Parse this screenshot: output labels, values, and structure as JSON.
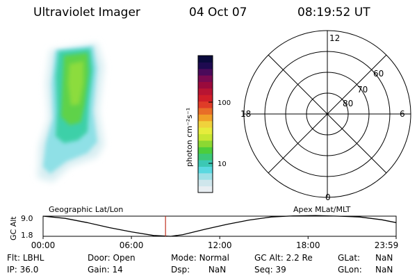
{
  "header": {
    "instrument": "Ultraviolet Imager",
    "date": "04 Oct 07",
    "time": "08:19:52 UT"
  },
  "colorbar": {
    "label": "photon cm⁻²s⁻¹",
    "tick_labels": [
      "100",
      "10"
    ],
    "colors": [
      "#e8eef2",
      "#cfe6ec",
      "#9fe0e6",
      "#5ad8e0",
      "#3cc8b4",
      "#3cc878",
      "#4ccd3c",
      "#8cd832",
      "#c8e632",
      "#e6ec3c",
      "#f0d23c",
      "#f0a028",
      "#e86e28",
      "#e03c28",
      "#d01e28",
      "#b81432",
      "#9a0a3c",
      "#7a0a50",
      "#4a0a5a",
      "#1e0a50",
      "#0a0a3c"
    ]
  },
  "polar_plot": {
    "mlt_labels": {
      "top": "12",
      "right": "6",
      "bottom": "0",
      "left": "18"
    },
    "lat_labels": [
      "60",
      "70",
      "80"
    ]
  },
  "timeline": {
    "left_title": "Geographic Lat/Lon",
    "right_title": "Apex MLat/MLT",
    "y_axis_label": "GC Alt",
    "y_ticks": [
      "9.0",
      "1.8"
    ],
    "x_ticks": [
      "00:00",
      "06:00",
      "12:00",
      "18:00",
      "23:59"
    ],
    "current_time_marker": "08:19",
    "marker_color": "#c03020"
  },
  "chart_data": {
    "type": "line",
    "title": "",
    "xlabel": "",
    "ylabel": "GC Alt",
    "x": [
      "00:00",
      "01:30",
      "03:00",
      "04:30",
      "06:00",
      "07:30",
      "08:40",
      "09:30",
      "11:00",
      "12:30",
      "14:00",
      "15:30",
      "17:00",
      "18:30",
      "20:00",
      "21:30",
      "23:00",
      "23:59"
    ],
    "series": [
      {
        "values": [
          9.0,
          8.2,
          6.7,
          4.9,
          3.4,
          2.1,
          1.8,
          2.4,
          4.3,
          6.1,
          7.6,
          8.7,
          9.1,
          9.2,
          9.0,
          8.7,
          7.7,
          6.7
        ]
      }
    ],
    "ylim": [
      1.8,
      9.0
    ],
    "xlim": [
      "00:00",
      "23:59"
    ]
  },
  "status": {
    "flt_label": "Flt:",
    "flt_value": "LBHL",
    "ip_label": "IP:",
    "ip_value": "36.0",
    "door_label": "Door:",
    "door_value": "Open",
    "gain_label": "Gain:",
    "gain_value": "14",
    "mode_label": "Mode:",
    "mode_value": "Normal",
    "dsp_label": "Dsp:",
    "dsp_value": "NaN",
    "gcalt_label": "GC Alt:",
    "gcalt_value": "2.2 Re",
    "seq_label": "Seq:",
    "seq_value": "39",
    "glat_label": "GLat:",
    "glat_value": "NaN",
    "glon_label": "GLon:",
    "glon_value": "NaN"
  }
}
